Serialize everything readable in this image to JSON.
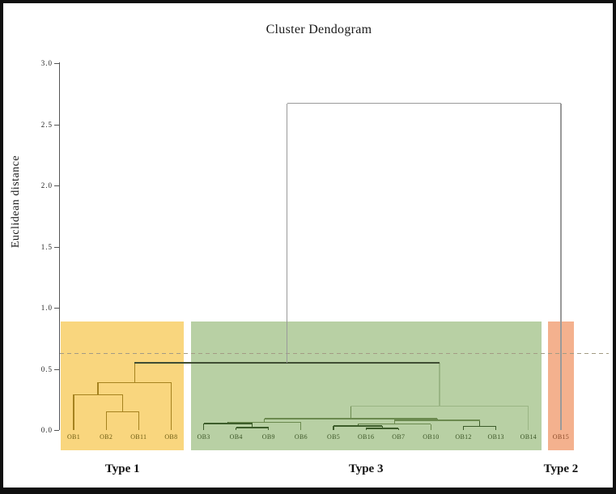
{
  "figure": {
    "title": "Cluster Dendogram",
    "y_axis": {
      "label": "Euclidean distance",
      "range": [
        0.0,
        3.0
      ],
      "ticks": [
        {
          "label": "3.0",
          "value": 3.0
        },
        {
          "label": "2.5",
          "value": 2.5
        },
        {
          "label": "2.0",
          "value": 2.0
        },
        {
          "label": "1.5",
          "value": 1.5
        },
        {
          "label": "1.0",
          "value": 1.0
        },
        {
          "label": "0.5",
          "value": 0.5
        },
        {
          "label": "0.0",
          "value": 0.0
        }
      ]
    }
  },
  "chart_data": {
    "type": "dendrogram",
    "title": "Cluster Dendogram",
    "ylabel": "Euclidean distance",
    "ylim": [
      0.0,
      3.0
    ],
    "leaves": [
      "OB1",
      "OB2",
      "OB11",
      "OB8",
      "OB3",
      "OB4",
      "OB9",
      "OB6",
      "OB5",
      "OB16",
      "OB7",
      "OB10",
      "OB12",
      "OB13",
      "OB14",
      "OB15"
    ],
    "merges": [
      {
        "id": "m1",
        "a": "OB2",
        "b": "OB11",
        "h": 0.15,
        "color": "gold"
      },
      {
        "id": "m2",
        "a": "OB1",
        "b": "m1",
        "h": 0.29,
        "color": "gold"
      },
      {
        "id": "m3",
        "a": "m2",
        "b": "OB8",
        "h": 0.39,
        "color": "gold"
      },
      {
        "id": "g1",
        "a": "OB4",
        "b": "OB9",
        "h": 0.02,
        "color": "greenDark",
        "thick": true
      },
      {
        "id": "g2",
        "a": "OB3",
        "b": "g1",
        "h": 0.053,
        "color": "greenDark"
      },
      {
        "id": "g3",
        "a": "g2",
        "b": "OB6",
        "h": 0.065,
        "color": "greenMid"
      },
      {
        "id": "g4",
        "a": "OB16",
        "b": "OB7",
        "h": 0.013,
        "color": "greenDark",
        "thick": true
      },
      {
        "id": "g5",
        "a": "OB5",
        "b": "g4",
        "h": 0.033,
        "color": "greenDark"
      },
      {
        "id": "g6",
        "a": "g5",
        "b": "OB10",
        "h": 0.047,
        "color": "greenMid"
      },
      {
        "id": "g7",
        "a": "OB12",
        "b": "OB13",
        "h": 0.03,
        "color": "greenDark"
      },
      {
        "id": "g8",
        "a": "g6",
        "b": "g7",
        "h": 0.08,
        "color": "greenMid"
      },
      {
        "id": "g9",
        "a": "g3",
        "b": "g8",
        "h": 0.093,
        "color": "greenMid"
      },
      {
        "id": "g10",
        "a": "g9",
        "b": "OB14",
        "h": 0.193,
        "color": "greenLight"
      },
      {
        "id": "tg",
        "a": "m3",
        "b": "g10",
        "h": 0.55,
        "color": "dark"
      },
      {
        "id": "root",
        "a": "tg",
        "b": "OB15",
        "h": 2.67,
        "color": "gray",
        "riser": "gray"
      }
    ],
    "threshold": {
      "value": 0.63,
      "style": "dashed"
    },
    "regions": [
      {
        "label": "Type 1",
        "first": "OB1",
        "last": "OB8",
        "top_value": 0.89,
        "fill": "#f9d67e",
        "text_color": "#6b5a10"
      },
      {
        "label": "Type 3",
        "first": "OB3",
        "last": "OB14",
        "top_value": 0.89,
        "fill": "#b8d0a4",
        "text_color": "#3a5425"
      },
      {
        "label": "Type 2",
        "first": "OB15",
        "last": "OB15",
        "top_value": 0.89,
        "fill": "#f4b18e",
        "text_color": "#8a4a28"
      }
    ],
    "palette": {
      "gold": "#a5821f",
      "greenDark": "#3c5c2a",
      "greenMid": "#6b8a4f",
      "greenLight": "#9ab585",
      "gray": "#9a9a9a",
      "dark": "#3f4d33",
      "threshold": "#a39b84",
      "axis": "#555555"
    }
  }
}
